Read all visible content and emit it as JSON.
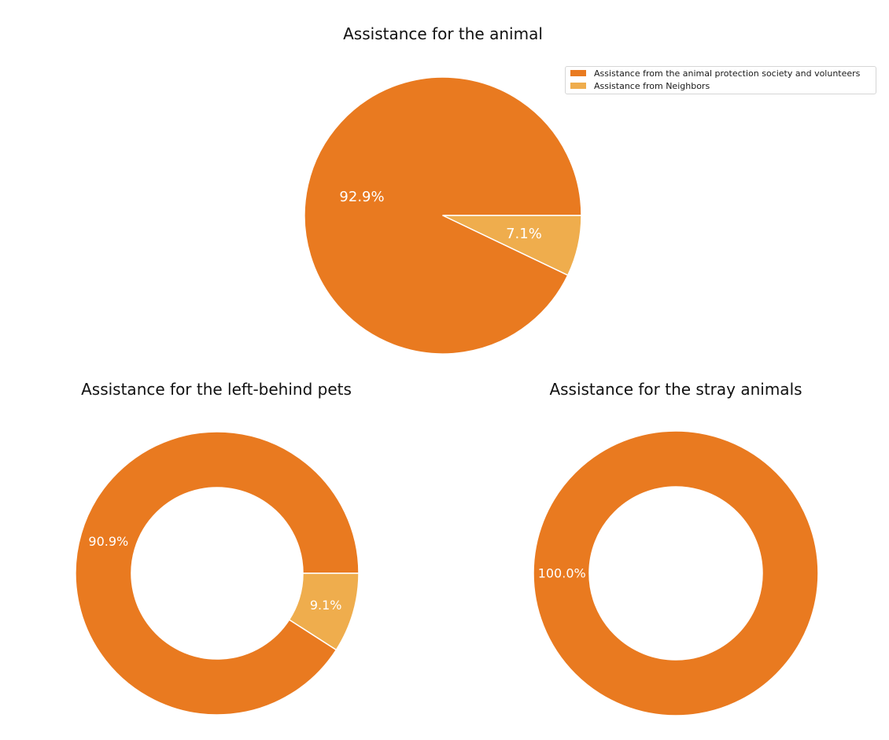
{
  "colors": {
    "society": "#e97a20",
    "neighbors": "#efad4d",
    "edge": "#ffffff",
    "label": "#ffffff",
    "title": "#111111"
  },
  "legend": {
    "items": [
      {
        "label": "Assistance from the animal protection society and volunteers",
        "color": "#e97a20"
      },
      {
        "label": "Assistance from Neighbors",
        "color": "#efad4d"
      }
    ]
  },
  "chart_data": [
    {
      "type": "pie",
      "title": "Assistance for the animal",
      "categories": [
        "Assistance from the animal protection society and volunteers",
        "Assistance from Neighbors"
      ],
      "values": [
        92.9,
        7.1
      ],
      "labels": [
        "92.9%",
        "7.1%"
      ],
      "donut": false,
      "legend": "top-right"
    },
    {
      "type": "pie",
      "title": "Assistance for the left-behind pets",
      "categories": [
        "Assistance from the animal protection society and volunteers",
        "Assistance from Neighbors"
      ],
      "values": [
        90.9,
        9.1
      ],
      "labels": [
        "90.9%",
        "9.1%"
      ],
      "donut": true
    },
    {
      "type": "pie",
      "title": "Assistance for the stray animals",
      "categories": [
        "Assistance from the animal protection society and volunteers"
      ],
      "values": [
        100.0
      ],
      "labels": [
        "100.0%"
      ],
      "donut": true
    }
  ]
}
